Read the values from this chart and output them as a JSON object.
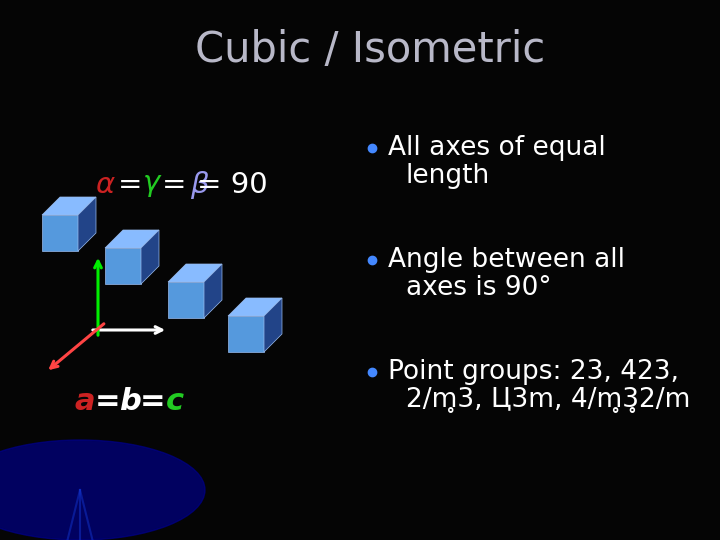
{
  "title": "Cubic / Isometric",
  "title_color": "#b8b8c8",
  "title_fontsize": 30,
  "bg_color": "#050505",
  "bullet_color": "#4488ff",
  "bullet_text_color": "#ffffff",
  "bullet_fontsize": 19,
  "bullet1_line1": "All axes of equal",
  "bullet1_line2": "length",
  "bullet2_line1": "Angle between all",
  "bullet2_line2": "axes is 90°",
  "bullet3_line1": "Point groups: 23, 423,",
  "bullet3_line2": "2/m̥3, Ц3m, 4/m̥̥3̥2/m",
  "eq_alpha_color": "#cc2222",
  "eq_gamma_color": "#22cc22",
  "eq_beta_color": "#9999ee",
  "a_color": "#cc2222",
  "b_color": "#ffffff",
  "c_color": "#22cc22",
  "cube_color": "#5599dd",
  "cube_top_color": "#88bbff",
  "cube_dark_color": "#224488",
  "axis_green": "#00ee00",
  "axis_red": "#ff4444",
  "axis_white": "#ffffff"
}
